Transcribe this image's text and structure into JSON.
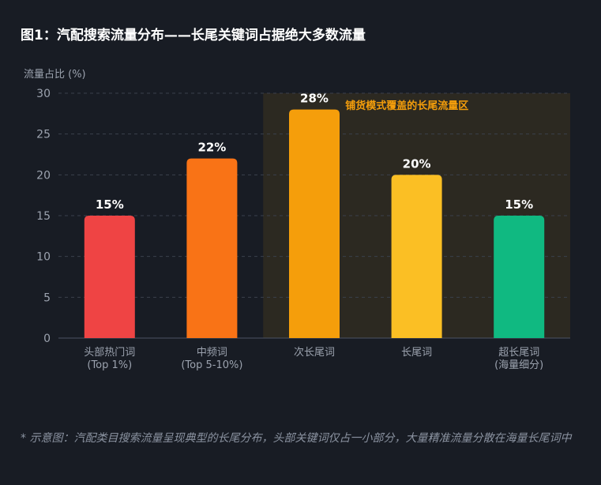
{
  "title": "图1：汽配搜索流量分布——长尾关键词占据绝大多数流量",
  "note": "* 示意图：汽配类目搜索流量呈现典型的长尾分布，头部关键词仅占一小部分，大量精准流量分散在海量长尾词中",
  "chart_data": {
    "type": "bar",
    "ylabel": "流量占比 (%)",
    "ylim": [
      0,
      30
    ],
    "yticks": [
      0,
      5,
      10,
      15,
      20,
      25,
      30
    ],
    "grid": true,
    "categories": [
      [
        "头部热门词",
        "(Top 1%)"
      ],
      [
        "中频词",
        "(Top 5-10%)"
      ],
      [
        "次长尾词"
      ],
      [
        "长尾词"
      ],
      [
        "超长尾词",
        "(海量细分)"
      ]
    ],
    "values": [
      15,
      22,
      28,
      20,
      15
    ],
    "data_labels": [
      "15%",
      "22%",
      "28%",
      "20%",
      "15%"
    ],
    "colors": [
      "#ef4444",
      "#f97316",
      "#f59e0b",
      "#fbbf24",
      "#10b981"
    ],
    "highlight": {
      "label": "铺货模式覆盖的长尾流量区",
      "from_category": 2,
      "to_category": 4,
      "fill": "#2c2921",
      "text_color": "#f59e0b"
    }
  }
}
